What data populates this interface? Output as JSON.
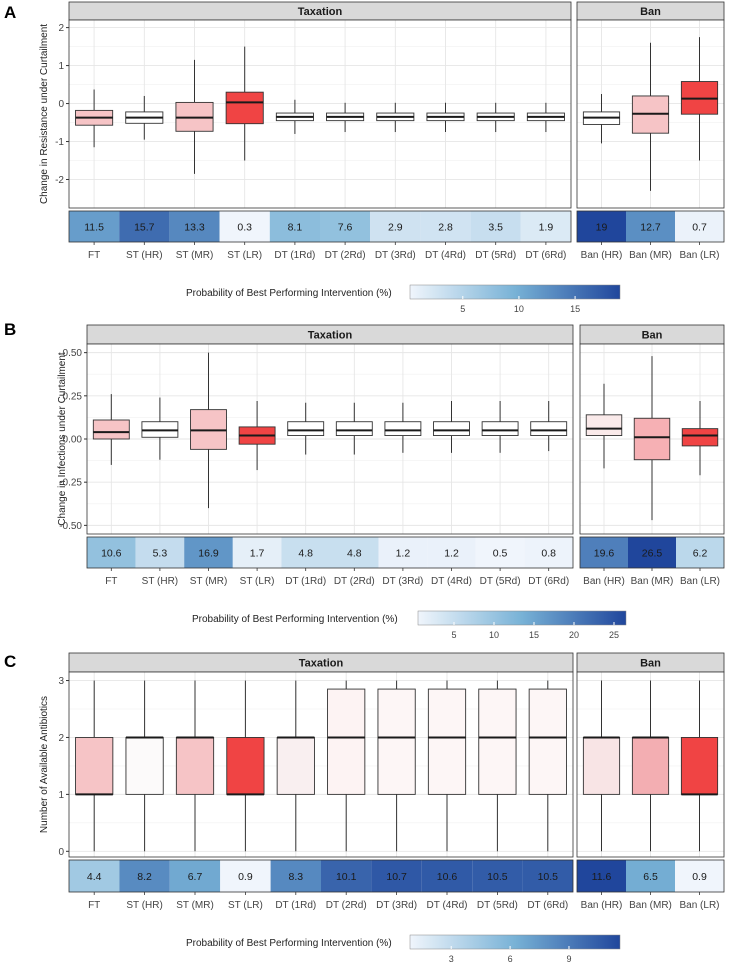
{
  "figure": {
    "strip_labels": {
      "taxation": "Taxation",
      "ban": "Ban"
    },
    "colorbar_title": "Probability of Best Performing Intervention (%)"
  },
  "chart_data": [
    {
      "type": "box",
      "panel_label": "A",
      "ylabel": "Change in Resistance under Curtailment",
      "ylim": [
        -2.75,
        2.2
      ],
      "yticks": [
        -2,
        -1,
        0,
        1,
        2
      ],
      "ytick_labels": [
        "-2",
        "-1",
        "0",
        "1",
        "2"
      ],
      "colorbar": {
        "min": 0.3,
        "max": 19,
        "ticks": [
          5,
          10,
          15
        ]
      },
      "facets": [
        {
          "name": "Taxation",
          "categories": [
            "FT",
            "ST (HR)",
            "ST (MR)",
            "ST (LR)",
            "DT (1Rd)",
            "DT (2Rd)",
            "DT (3Rd)",
            "DT (4Rd)",
            "DT (5Rd)",
            "DT (6Rd)"
          ],
          "boxes": [
            {
              "min": -1.15,
              "q1": -0.57,
              "median": -0.37,
              "q3": -0.18,
              "max": 0.37,
              "fill": "#f6c4c6"
            },
            {
              "min": -0.95,
              "q1": -0.52,
              "median": -0.37,
              "q3": -0.22,
              "max": 0.2,
              "fill": "#ffffff"
            },
            {
              "min": -1.85,
              "q1": -0.73,
              "median": -0.37,
              "q3": 0.03,
              "max": 1.15,
              "fill": "#f6c4c6"
            },
            {
              "min": -1.5,
              "q1": -0.53,
              "median": 0.03,
              "q3": 0.3,
              "max": 1.5,
              "fill": "#f04444"
            },
            {
              "min": -0.8,
              "q1": -0.45,
              "median": -0.35,
              "q3": -0.25,
              "max": 0.1,
              "fill": "#ffffff"
            },
            {
              "min": -0.75,
              "q1": -0.45,
              "median": -0.35,
              "q3": -0.25,
              "max": 0.02,
              "fill": "#ffffff"
            },
            {
              "min": -0.75,
              "q1": -0.45,
              "median": -0.35,
              "q3": -0.25,
              "max": 0.02,
              "fill": "#ffffff"
            },
            {
              "min": -0.75,
              "q1": -0.45,
              "median": -0.35,
              "q3": -0.25,
              "max": 0.02,
              "fill": "#ffffff"
            },
            {
              "min": -0.75,
              "q1": -0.45,
              "median": -0.35,
              "q3": -0.25,
              "max": 0.02,
              "fill": "#ffffff"
            },
            {
              "min": -0.75,
              "q1": -0.45,
              "median": -0.35,
              "q3": -0.25,
              "max": 0.02,
              "fill": "#ffffff"
            }
          ],
          "probabilities": [
            11.5,
            15.7,
            13.3,
            0.3,
            8.1,
            7.6,
            2.9,
            2.8,
            3.5,
            1.9
          ]
        },
        {
          "name": "Ban",
          "categories": [
            "Ban (HR)",
            "Ban (MR)",
            "Ban (LR)"
          ],
          "boxes": [
            {
              "min": -1.05,
              "q1": -0.55,
              "median": -0.37,
              "q3": -0.22,
              "max": 0.25,
              "fill": "#ffffff"
            },
            {
              "min": -2.3,
              "q1": -0.78,
              "median": -0.27,
              "q3": 0.2,
              "max": 1.6,
              "fill": "#f6c4c6"
            },
            {
              "min": -1.5,
              "q1": -0.28,
              "median": 0.13,
              "q3": 0.58,
              "max": 1.75,
              "fill": "#f04444"
            }
          ],
          "probabilities": [
            19,
            12.7,
            0.7
          ]
        }
      ]
    },
    {
      "type": "box",
      "panel_label": "B",
      "ylabel": "Change in Infections under Curtailment",
      "ylim": [
        -0.55,
        0.55
      ],
      "yticks": [
        -0.5,
        -0.25,
        0,
        0.25,
        0.5
      ],
      "ytick_labels": [
        "-0.50",
        "-0.25",
        "0.00",
        "0.25",
        "0.50"
      ],
      "colorbar": {
        "min": 0.5,
        "max": 26.5,
        "ticks": [
          5,
          10,
          15,
          20,
          25
        ]
      },
      "facets": [
        {
          "name": "Taxation",
          "categories": [
            "FT",
            "ST (HR)",
            "ST (MR)",
            "ST (LR)",
            "DT (1Rd)",
            "DT (2Rd)",
            "DT (3Rd)",
            "DT (4Rd)",
            "DT (5Rd)",
            "DT (6Rd)"
          ],
          "boxes": [
            {
              "min": -0.15,
              "q1": 0.0,
              "median": 0.04,
              "q3": 0.11,
              "max": 0.26,
              "fill": "#f6c4c6"
            },
            {
              "min": -0.12,
              "q1": 0.01,
              "median": 0.05,
              "q3": 0.1,
              "max": 0.24,
              "fill": "#ffffff"
            },
            {
              "min": -0.4,
              "q1": -0.06,
              "median": 0.05,
              "q3": 0.17,
              "max": 0.5,
              "fill": "#f6c4c6"
            },
            {
              "min": -0.18,
              "q1": -0.03,
              "median": 0.02,
              "q3": 0.07,
              "max": 0.22,
              "fill": "#f04444"
            },
            {
              "min": -0.09,
              "q1": 0.02,
              "median": 0.05,
              "q3": 0.1,
              "max": 0.21,
              "fill": "#ffffff"
            },
            {
              "min": -0.09,
              "q1": 0.02,
              "median": 0.05,
              "q3": 0.1,
              "max": 0.21,
              "fill": "#ffffff"
            },
            {
              "min": -0.08,
              "q1": 0.02,
              "median": 0.05,
              "q3": 0.1,
              "max": 0.21,
              "fill": "#ffffff"
            },
            {
              "min": -0.08,
              "q1": 0.02,
              "median": 0.05,
              "q3": 0.1,
              "max": 0.22,
              "fill": "#ffffff"
            },
            {
              "min": -0.08,
              "q1": 0.02,
              "median": 0.05,
              "q3": 0.1,
              "max": 0.22,
              "fill": "#ffffff"
            },
            {
              "min": -0.07,
              "q1": 0.02,
              "median": 0.05,
              "q3": 0.1,
              "max": 0.22,
              "fill": "#ffffff"
            }
          ],
          "probabilities": [
            10.6,
            5.3,
            16.9,
            1.7,
            4.8,
            4.8,
            1.2,
            1.2,
            0.5,
            0.8
          ]
        },
        {
          "name": "Ban",
          "categories": [
            "Ban (HR)",
            "Ban (MR)",
            "Ban (LR)"
          ],
          "boxes": [
            {
              "min": -0.17,
              "q1": 0.02,
              "median": 0.06,
              "q3": 0.14,
              "max": 0.32,
              "fill": "#faeaea"
            },
            {
              "min": -0.47,
              "q1": -0.12,
              "median": 0.01,
              "q3": 0.12,
              "max": 0.48,
              "fill": "#f6b0b4"
            },
            {
              "min": -0.21,
              "q1": -0.04,
              "median": 0.02,
              "q3": 0.06,
              "max": 0.22,
              "fill": "#f04444"
            }
          ],
          "probabilities": [
            19.6,
            26.5,
            6.2
          ]
        }
      ]
    },
    {
      "type": "box",
      "panel_label": "C",
      "ylabel": "Number of Available Antibiotics",
      "ylim": [
        -0.1,
        3.15
      ],
      "yticks": [
        0,
        1,
        2,
        3
      ],
      "ytick_labels": [
        "0",
        "1",
        "2",
        "3"
      ],
      "colorbar": {
        "min": 0.9,
        "max": 11.6,
        "ticks": [
          3,
          6,
          9
        ]
      },
      "facets": [
        {
          "name": "Taxation",
          "categories": [
            "FT",
            "ST (HR)",
            "ST (MR)",
            "ST (LR)",
            "DT (1Rd)",
            "DT (2Rd)",
            "DT (3Rd)",
            "DT (4Rd)",
            "DT (5Rd)",
            "DT (6Rd)"
          ],
          "boxes": [
            {
              "min": 0,
              "q1": 1,
              "median": 1,
              "q3": 2,
              "max": 3,
              "fill": "#f6c4c6"
            },
            {
              "min": 0,
              "q1": 1,
              "median": 2,
              "q3": 2,
              "max": 3,
              "fill": "#fcfafa"
            },
            {
              "min": 0,
              "q1": 1,
              "median": 2,
              "q3": 2,
              "max": 3,
              "fill": "#f6c4c6"
            },
            {
              "min": 0,
              "q1": 1,
              "median": 1,
              "q3": 2,
              "max": 3,
              "fill": "#f04444"
            },
            {
              "min": 0,
              "q1": 1,
              "median": 2,
              "q3": 2,
              "max": 3,
              "fill": "#f9eff0"
            },
            {
              "min": 0,
              "q1": 1,
              "median": 2,
              "q3": 2.85,
              "max": 3,
              "fill": "#fdf3f3"
            },
            {
              "min": 0,
              "q1": 1,
              "median": 2,
              "q3": 2.85,
              "max": 3,
              "fill": "#fdf6f6"
            },
            {
              "min": 0,
              "q1": 1,
              "median": 2,
              "q3": 2.85,
              "max": 3,
              "fill": "#fdf6f6"
            },
            {
              "min": 0,
              "q1": 1,
              "median": 2,
              "q3": 2.85,
              "max": 3,
              "fill": "#fdf6f6"
            },
            {
              "min": 0,
              "q1": 1,
              "median": 2,
              "q3": 2.85,
              "max": 3,
              "fill": "#fdf6f6"
            }
          ],
          "probabilities": [
            4.4,
            8.2,
            6.7,
            0.9,
            8.3,
            10.1,
            10.7,
            10.6,
            10.5,
            10.5
          ]
        },
        {
          "name": "Ban",
          "categories": [
            "Ban (HR)",
            "Ban (MR)",
            "Ban (LR)"
          ],
          "boxes": [
            {
              "min": 0,
              "q1": 1,
              "median": 2,
              "q3": 2,
              "max": 3,
              "fill": "#f8e4e5"
            },
            {
              "min": 0,
              "q1": 1,
              "median": 2,
              "q3": 2,
              "max": 3,
              "fill": "#f3aeb2"
            },
            {
              "min": 0,
              "q1": 1,
              "median": 1,
              "q3": 2,
              "max": 3,
              "fill": "#f04444"
            }
          ],
          "probabilities": [
            11.6,
            6.5,
            0.9
          ]
        }
      ]
    }
  ]
}
